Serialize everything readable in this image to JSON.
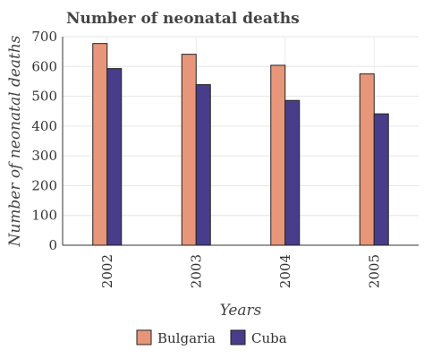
{
  "chart_data": {
    "type": "bar",
    "title": "Number of neonatal deaths",
    "xlabel": "Years",
    "ylabel": "Number of neonatal deaths",
    "categories": [
      "2002",
      "2003",
      "2004",
      "2005"
    ],
    "series": [
      {
        "name": "Bulgaria",
        "values": [
          677,
          641,
          604,
          575
        ],
        "color": "#e8967a"
      },
      {
        "name": "Cuba",
        "values": [
          593,
          539,
          486,
          441
        ],
        "color": "#483d8b"
      }
    ],
    "ylim": [
      0,
      700
    ],
    "yticks": [
      "0",
      "100",
      "200",
      "300",
      "400",
      "500",
      "600",
      "700"
    ],
    "grid": true,
    "legend_position": "bottom"
  }
}
